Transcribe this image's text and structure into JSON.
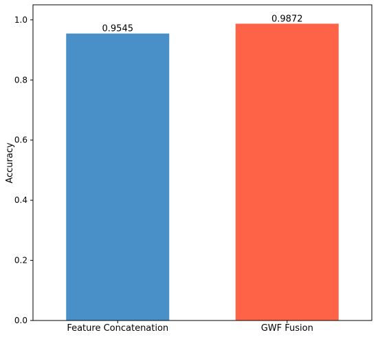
{
  "chart_data": {
    "type": "bar",
    "categories": [
      "Feature Concatenation",
      "GWF Fusion"
    ],
    "values": [
      0.9545,
      0.9872
    ],
    "data_labels": [
      "0.9545",
      "0.9872"
    ],
    "title": "",
    "xlabel": "",
    "ylabel": "Accuracy",
    "ylim": [
      0,
      1.05
    ],
    "yticks": [
      0.0,
      0.2,
      0.4,
      0.6,
      0.8,
      1.0
    ],
    "ytick_labels": [
      "0.0",
      "0.2",
      "0.4",
      "0.6",
      "0.8",
      "1.0"
    ],
    "colors": [
      "#4a90c8",
      "#ff6347"
    ],
    "grid": false,
    "legend": "none"
  }
}
